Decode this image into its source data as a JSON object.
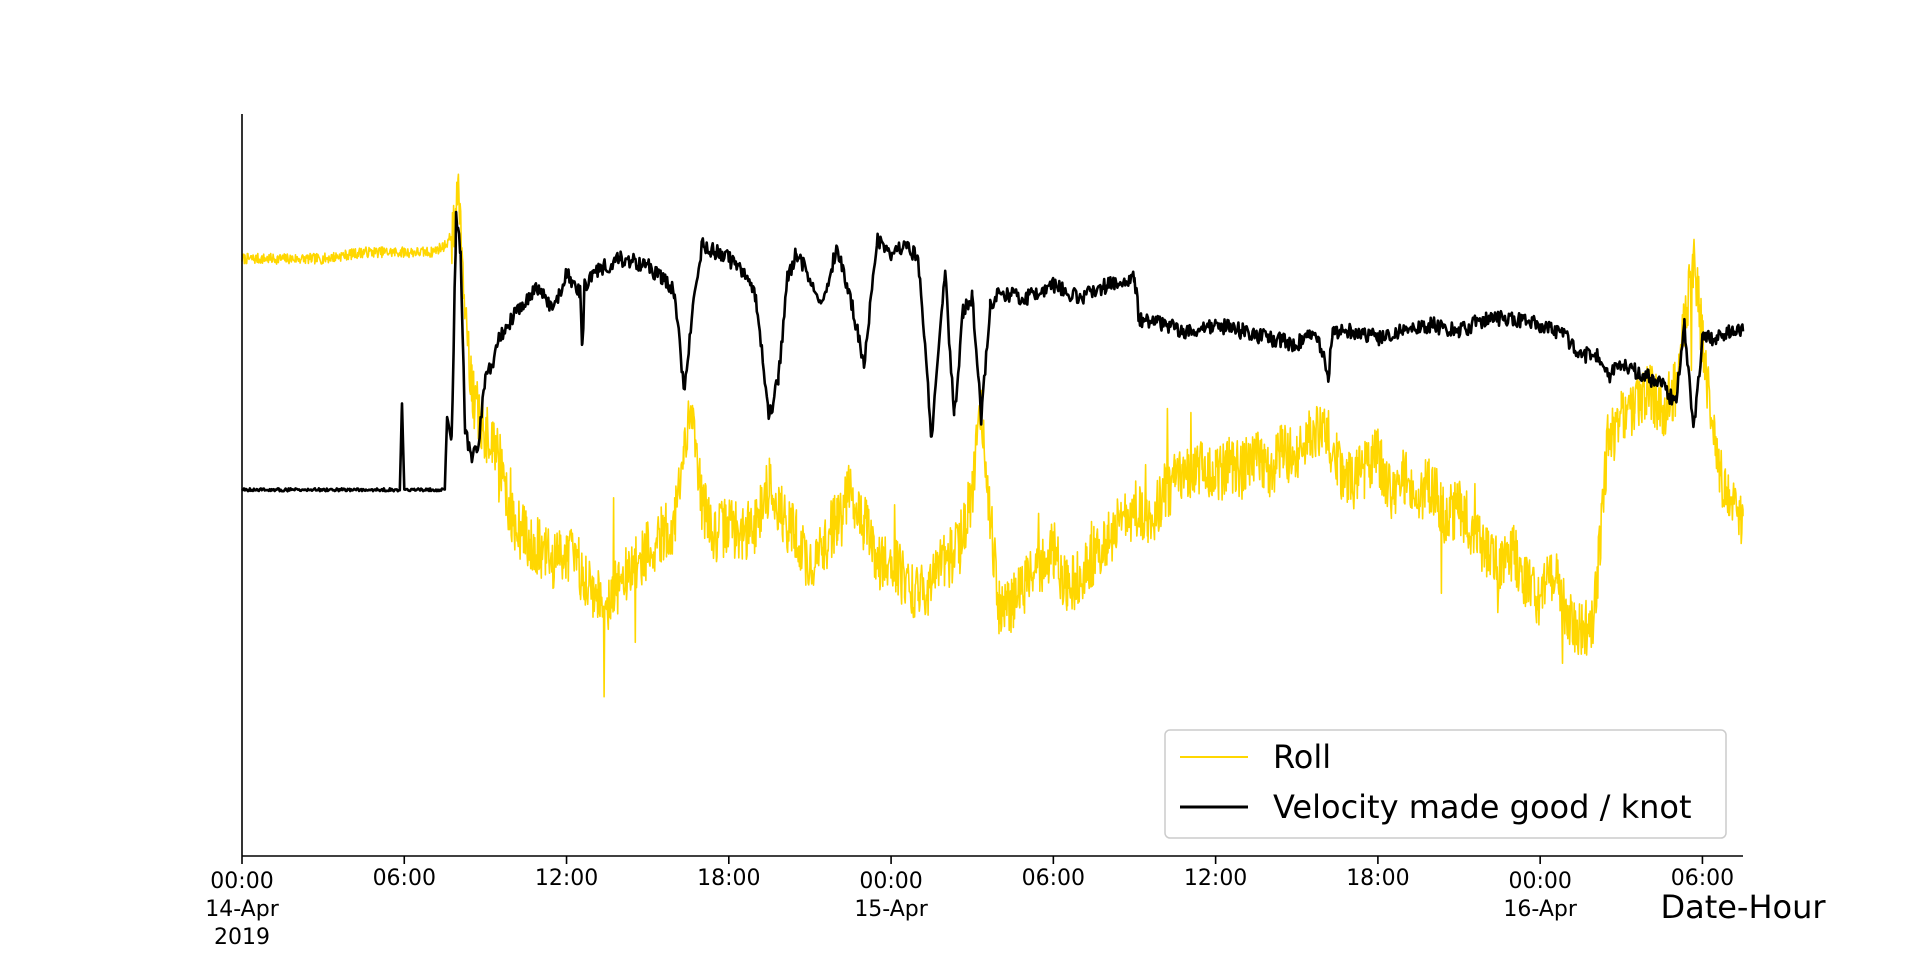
{
  "chart_data": {
    "type": "line",
    "title": "",
    "xlabel": "Date-Hour",
    "ylabel": "",
    "y_ticks_shown": false,
    "grid": false,
    "legend_placement": "lower-right",
    "x_range": [
      "2019-04-14 00:00",
      "2019-04-16 07:30"
    ],
    "x_ticks": [
      {
        "t": "2019-04-14 00:00",
        "lines": [
          "00:00",
          "14-Apr",
          "2019"
        ]
      },
      {
        "t": "2019-04-14 06:00",
        "lines": [
          "06:00"
        ]
      },
      {
        "t": "2019-04-14 12:00",
        "lines": [
          "12:00"
        ]
      },
      {
        "t": "2019-04-14 18:00",
        "lines": [
          "18:00"
        ]
      },
      {
        "t": "2019-04-15 00:00",
        "lines": [
          "00:00",
          "15-Apr"
        ]
      },
      {
        "t": "2019-04-15 06:00",
        "lines": [
          "06:00"
        ]
      },
      {
        "t": "2019-04-15 12:00",
        "lines": [
          "12:00"
        ]
      },
      {
        "t": "2019-04-15 18:00",
        "lines": [
          "18:00"
        ]
      },
      {
        "t": "2019-04-16 00:00",
        "lines": [
          "00:00",
          "16-Apr"
        ]
      },
      {
        "t": "2019-04-16 06:00",
        "lines": [
          "06:00"
        ]
      }
    ],
    "series": [
      {
        "name": "Roll",
        "color": "#FFD700",
        "x": [
          "2019-04-14 00:00",
          "2019-04-14 01:30",
          "2019-04-14 03:00",
          "2019-04-14 04:30",
          "2019-04-14 06:00",
          "2019-04-14 07:00",
          "2019-04-14 07:30",
          "2019-04-14 07:50",
          "2019-04-14 08:00",
          "2019-04-14 08:15",
          "2019-04-14 08:30",
          "2019-04-14 08:45",
          "2019-04-14 09:00",
          "2019-04-14 09:15",
          "2019-04-14 09:30",
          "2019-04-14 10:00",
          "2019-04-14 10:30",
          "2019-04-14 11:00",
          "2019-04-14 11:30",
          "2019-04-14 12:00",
          "2019-04-14 12:30",
          "2019-04-14 13:00",
          "2019-04-14 13:30",
          "2019-04-14 14:00",
          "2019-04-14 14:30",
          "2019-04-14 15:00",
          "2019-04-14 15:30",
          "2019-04-14 16:00",
          "2019-04-14 16:20",
          "2019-04-14 16:40",
          "2019-04-14 17:00",
          "2019-04-14 17:30",
          "2019-04-14 18:00",
          "2019-04-14 18:30",
          "2019-04-14 19:00",
          "2019-04-14 19:30",
          "2019-04-14 20:00",
          "2019-04-14 20:30",
          "2019-04-14 21:00",
          "2019-04-14 21:30",
          "2019-04-14 22:00",
          "2019-04-14 22:30",
          "2019-04-14 23:00",
          "2019-04-14 23:30",
          "2019-04-15 00:00",
          "2019-04-15 00:30",
          "2019-04-15 01:00",
          "2019-04-15 01:30",
          "2019-04-15 02:00",
          "2019-04-15 02:30",
          "2019-04-15 03:00",
          "2019-04-15 03:20",
          "2019-04-15 03:40",
          "2019-04-15 04:00",
          "2019-04-15 04:30",
          "2019-04-15 05:00",
          "2019-04-15 05:30",
          "2019-04-15 06:00",
          "2019-04-15 06:30",
          "2019-04-15 07:00",
          "2019-04-15 07:30",
          "2019-04-15 08:00",
          "2019-04-15 08:30",
          "2019-04-15 09:00",
          "2019-04-15 09:30",
          "2019-04-15 10:00",
          "2019-04-15 10:30",
          "2019-04-15 11:00",
          "2019-04-15 11:30",
          "2019-04-15 12:00",
          "2019-04-15 12:30",
          "2019-04-15 13:00",
          "2019-04-15 13:30",
          "2019-04-15 14:00",
          "2019-04-15 14:30",
          "2019-04-15 15:00",
          "2019-04-15 15:30",
          "2019-04-15 16:00",
          "2019-04-15 16:30",
          "2019-04-15 17:00",
          "2019-04-15 17:30",
          "2019-04-15 18:00",
          "2019-04-15 18:30",
          "2019-04-15 19:00",
          "2019-04-15 19:30",
          "2019-04-15 20:00",
          "2019-04-15 20:30",
          "2019-04-15 21:00",
          "2019-04-15 21:30",
          "2019-04-15 22:00",
          "2019-04-15 22:30",
          "2019-04-15 23:00",
          "2019-04-15 23:30",
          "2019-04-16 00:00",
          "2019-04-16 00:30",
          "2019-04-16 01:00",
          "2019-04-16 01:30",
          "2019-04-16 02:00",
          "2019-04-16 02:30",
          "2019-04-16 03:00",
          "2019-04-16 03:30",
          "2019-04-16 04:00",
          "2019-04-16 04:30",
          "2019-04-16 05:00",
          "2019-04-16 05:20",
          "2019-04-16 05:40",
          "2019-04-16 06:00",
          "2019-04-16 06:30",
          "2019-04-16 07:00",
          "2019-04-16 07:30"
        ],
        "y": [
          0.82,
          0.82,
          0.82,
          0.83,
          0.83,
          0.83,
          0.84,
          0.86,
          0.95,
          0.75,
          0.62,
          0.58,
          0.55,
          0.55,
          0.52,
          0.42,
          0.4,
          0.38,
          0.36,
          0.38,
          0.35,
          0.32,
          0.3,
          0.33,
          0.35,
          0.38,
          0.4,
          0.42,
          0.52,
          0.6,
          0.45,
          0.4,
          0.42,
          0.4,
          0.42,
          0.48,
          0.43,
          0.4,
          0.35,
          0.38,
          0.43,
          0.47,
          0.42,
          0.36,
          0.37,
          0.33,
          0.31,
          0.33,
          0.36,
          0.38,
          0.47,
          0.6,
          0.43,
          0.29,
          0.3,
          0.33,
          0.35,
          0.38,
          0.32,
          0.34,
          0.37,
          0.4,
          0.42,
          0.44,
          0.42,
          0.46,
          0.48,
          0.49,
          0.5,
          0.49,
          0.51,
          0.5,
          0.52,
          0.5,
          0.53,
          0.52,
          0.55,
          0.57,
          0.51,
          0.48,
          0.5,
          0.52,
          0.47,
          0.49,
          0.46,
          0.48,
          0.43,
          0.44,
          0.41,
          0.37,
          0.35,
          0.38,
          0.33,
          0.3,
          0.35,
          0.28,
          0.25,
          0.28,
          0.54,
          0.58,
          0.6,
          0.62,
          0.59,
          0.62,
          0.72,
          0.82,
          0.7,
          0.52,
          0.45,
          0.43
        ]
      },
      {
        "name": "Velocity made good / knot",
        "color": "#000000",
        "x": [
          "2019-04-14 00:00",
          "2019-04-14 02:00",
          "2019-04-14 04:00",
          "2019-04-14 05:50",
          "2019-04-14 05:55",
          "2019-04-14 06:00",
          "2019-04-14 07:30",
          "2019-04-14 07:35",
          "2019-04-14 07:45",
          "2019-04-14 07:55",
          "2019-04-14 08:05",
          "2019-04-14 08:15",
          "2019-04-14 08:30",
          "2019-04-14 08:45",
          "2019-04-14 09:00",
          "2019-04-14 09:15",
          "2019-04-14 09:30",
          "2019-04-14 10:00",
          "2019-04-14 10:30",
          "2019-04-14 11:00",
          "2019-04-14 11:30",
          "2019-04-14 12:00",
          "2019-04-14 12:30",
          "2019-04-14 12:35",
          "2019-04-14 12:40",
          "2019-04-14 13:00",
          "2019-04-14 14:00",
          "2019-04-14 15:00",
          "2019-04-14 15:30",
          "2019-04-14 16:00",
          "2019-04-14 16:20",
          "2019-04-14 16:40",
          "2019-04-14 17:00",
          "2019-04-14 17:30",
          "2019-04-14 18:00",
          "2019-04-14 18:30",
          "2019-04-14 19:00",
          "2019-04-14 19:30",
          "2019-04-14 19:50",
          "2019-04-14 20:10",
          "2019-04-14 20:30",
          "2019-04-14 21:00",
          "2019-04-14 21:30",
          "2019-04-14 22:00",
          "2019-04-14 22:30",
          "2019-04-14 23:00",
          "2019-04-14 23:30",
          "2019-04-15 00:00",
          "2019-04-15 00:30",
          "2019-04-15 01:00",
          "2019-04-15 01:30",
          "2019-04-15 02:00",
          "2019-04-15 02:20",
          "2019-04-15 02:40",
          "2019-04-15 03:00",
          "2019-04-15 03:20",
          "2019-04-15 03:40",
          "2019-04-15 04:00",
          "2019-04-15 05:00",
          "2019-04-15 06:00",
          "2019-04-15 07:00",
          "2019-04-15 08:00",
          "2019-04-15 09:00",
          "2019-04-15 09:10",
          "2019-04-15 10:00",
          "2019-04-15 11:00",
          "2019-04-15 12:00",
          "2019-04-15 13:00",
          "2019-04-15 14:00",
          "2019-04-15 15:00",
          "2019-04-15 15:30",
          "2019-04-15 16:00",
          "2019-04-15 16:10",
          "2019-04-15 16:20",
          "2019-04-15 17:00",
          "2019-04-15 18:00",
          "2019-04-15 19:00",
          "2019-04-15 20:00",
          "2019-04-15 21:00",
          "2019-04-15 22:00",
          "2019-04-15 23:00",
          "2019-04-16 00:00",
          "2019-04-16 01:00",
          "2019-04-16 01:30",
          "2019-04-16 02:00",
          "2019-04-16 02:30",
          "2019-04-16 03:00",
          "2019-04-16 03:30",
          "2019-04-16 04:00",
          "2019-04-16 04:30",
          "2019-04-16 05:00",
          "2019-04-16 05:20",
          "2019-04-16 05:40",
          "2019-04-16 06:00",
          "2019-04-16 06:30",
          "2019-04-16 07:00",
          "2019-04-16 07:30"
        ],
        "y": [
          0.47,
          0.47,
          0.47,
          0.47,
          0.6,
          0.47,
          0.47,
          0.58,
          0.54,
          0.88,
          0.83,
          0.56,
          0.52,
          0.54,
          0.64,
          0.66,
          0.7,
          0.73,
          0.76,
          0.78,
          0.74,
          0.8,
          0.77,
          0.68,
          0.78,
          0.8,
          0.82,
          0.81,
          0.79,
          0.77,
          0.62,
          0.74,
          0.84,
          0.83,
          0.82,
          0.8,
          0.76,
          0.58,
          0.64,
          0.79,
          0.83,
          0.79,
          0.75,
          0.84,
          0.76,
          0.66,
          0.85,
          0.83,
          0.84,
          0.82,
          0.55,
          0.8,
          0.58,
          0.74,
          0.76,
          0.58,
          0.75,
          0.77,
          0.76,
          0.78,
          0.76,
          0.78,
          0.79,
          0.73,
          0.72,
          0.71,
          0.72,
          0.71,
          0.7,
          0.69,
          0.71,
          0.68,
          0.64,
          0.71,
          0.71,
          0.7,
          0.71,
          0.72,
          0.71,
          0.73,
          0.73,
          0.72,
          0.7,
          0.67,
          0.68,
          0.64,
          0.66,
          0.65,
          0.64,
          0.63,
          0.6,
          0.72,
          0.56,
          0.7,
          0.7,
          0.71,
          0.71
        ]
      }
    ],
    "legend": [
      {
        "label": "Roll",
        "color": "#FFD700"
      },
      {
        "label": "Velocity made good / knot",
        "color": "#000000"
      }
    ]
  }
}
